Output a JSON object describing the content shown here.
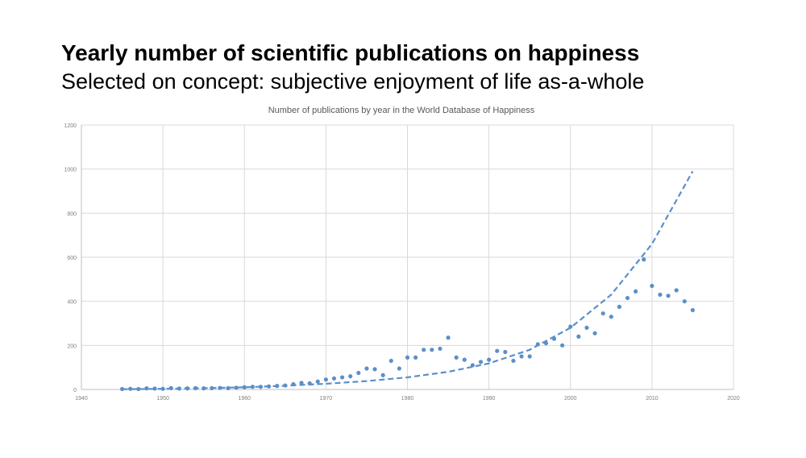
{
  "slide": {
    "title": "Yearly number of scientific publications on happiness",
    "subtitle": "Selected on concept: subjective enjoyment of life as-a-whole"
  },
  "chart_data": {
    "type": "scatter",
    "title": "Number of publications by year in the World Database of Happiness",
    "xlabel": "",
    "ylabel": "",
    "xlim": [
      1940,
      2020
    ],
    "ylim": [
      0,
      1200
    ],
    "xticks": [
      1940,
      1950,
      1960,
      1970,
      1980,
      1990,
      2000,
      2010,
      2020
    ],
    "yticks": [
      0,
      200,
      400,
      600,
      800,
      1000,
      1200
    ],
    "grid": true,
    "colors": {
      "points": "#5b8fc9",
      "trend": "#5b8fc9",
      "grid": "#d9d9d9",
      "axis": "#bfbfbf",
      "tick_text": "#7f7f7f"
    },
    "series": [
      {
        "x": [
          1945,
          1946,
          1947,
          1948,
          1949,
          1950,
          1951,
          1952,
          1953,
          1954,
          1955,
          1956,
          1957,
          1958,
          1959,
          1960,
          1961,
          1962,
          1963,
          1964,
          1965,
          1966,
          1967,
          1968,
          1969,
          1970,
          1971,
          1972,
          1973,
          1974,
          1975,
          1976,
          1977,
          1978,
          1979,
          1980,
          1981,
          1982,
          1983,
          1984,
          1985,
          1986,
          1987,
          1988,
          1989,
          1990,
          1991,
          1992,
          1993,
          1994,
          1995,
          1996,
          1997,
          1998,
          1999,
          2000,
          2001,
          2002,
          2003,
          2004,
          2005,
          2006,
          2007,
          2008,
          2009,
          2010,
          2011,
          2012,
          2013,
          2014,
          2015
        ],
        "values": [
          2,
          3,
          2,
          5,
          4,
          3,
          6,
          4,
          5,
          6,
          5,
          6,
          7,
          6,
          8,
          10,
          12,
          12,
          14,
          16,
          18,
          24,
          30,
          28,
          36,
          45,
          50,
          55,
          60,
          75,
          95,
          92,
          65,
          130,
          95,
          145,
          145,
          180,
          180,
          185,
          235,
          145,
          135,
          110,
          125,
          135,
          175,
          170,
          130,
          150,
          150,
          205,
          210,
          230,
          200,
          285,
          240,
          280,
          255,
          345,
          330,
          375,
          415,
          445,
          590,
          470,
          430,
          425,
          450,
          400,
          360
        ]
      },
      {
        "style": "dashed-trend",
        "x": [
          1945,
          1950,
          1955,
          1960,
          1965,
          1970,
          1975,
          1980,
          1985,
          1990,
          1995,
          2000,
          2005,
          2010,
          2015
        ],
        "values": [
          1,
          3,
          6,
          10,
          17,
          26,
          38,
          55,
          80,
          118,
          180,
          280,
          430,
          660,
          990
        ]
      }
    ]
  }
}
